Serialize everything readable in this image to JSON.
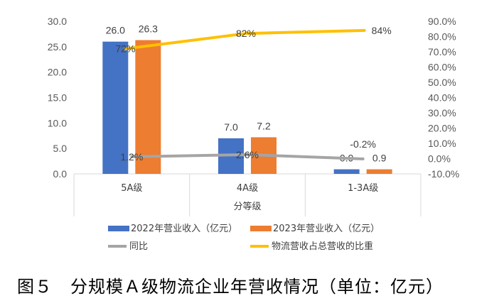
{
  "caption": "图５　分规模Ａ级物流企业年营收情况（单位：亿元）",
  "colors": {
    "bar2022": "#4472C4",
    "bar2023": "#ED7D31",
    "yoy": "#A5A5A5",
    "share": "#FFC000"
  },
  "chart_data": {
    "type": "bar",
    "categories": [
      "5A级",
      "4A级",
      "1-3A级"
    ],
    "xlabel": "分等级",
    "yticks_left": [
      "0.0",
      "5.0",
      "10.0",
      "15.0",
      "20.0",
      "25.0",
      "30.0"
    ],
    "ylim_left": [
      0,
      30
    ],
    "yticks_right": [
      "-10.0%",
      "0.0%",
      "10.0%",
      "20.0%",
      "30.0%",
      "40.0%",
      "50.0%",
      "60.0%",
      "70.0%",
      "80.0%",
      "90.0%"
    ],
    "ylim_right": [
      -10,
      90
    ],
    "series": [
      {
        "name": "2022年营业收入（亿元）",
        "type": "bar",
        "axis": "left",
        "values": [
          26.0,
          7.0,
          0.9
        ],
        "labels": [
          "26.0",
          "7.0",
          "0.9"
        ]
      },
      {
        "name": "2023年营业收入（亿元）",
        "type": "bar",
        "axis": "left",
        "values": [
          26.3,
          7.2,
          0.9
        ],
        "labels": [
          "26.3",
          "7.2",
          "0.9"
        ]
      },
      {
        "name": "同比",
        "type": "line",
        "axis": "right",
        "values": [
          1.2,
          2.6,
          -0.2
        ],
        "labels": [
          "1.2%",
          "2.6%",
          "-0.2%"
        ]
      },
      {
        "name": "物流营收占总营收的比重",
        "type": "line",
        "axis": "right",
        "values": [
          72,
          82,
          84
        ],
        "labels": [
          "72%",
          "82%",
          "84%"
        ]
      }
    ],
    "legend_position": "bottom"
  }
}
